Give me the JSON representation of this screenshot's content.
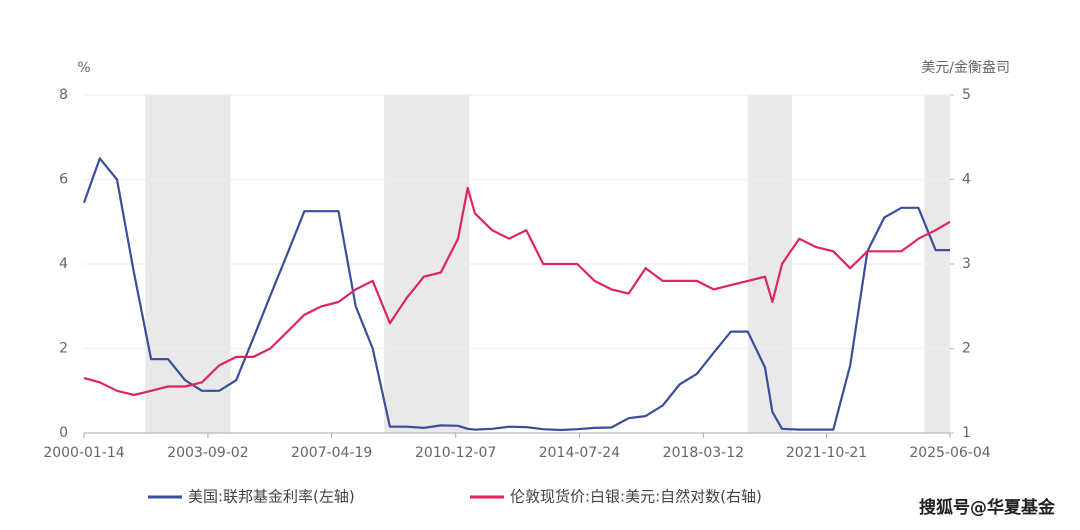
{
  "chart_data": {
    "type": "line",
    "y_unit": "%",
    "y2_unit": "美元/金衡盎司",
    "x": [
      "2000-01-14",
      "2000-07-01",
      "2001-01-01",
      "2001-07-01",
      "2002-01-01",
      "2002-07-01",
      "2003-01-01",
      "2003-07-01",
      "2004-01-01",
      "2004-07-01",
      "2005-01-01",
      "2005-07-01",
      "2006-01-01",
      "2006-07-01",
      "2007-01-01",
      "2007-07-01",
      "2008-01-01",
      "2008-07-01",
      "2009-01-01",
      "2009-07-01",
      "2010-01-01",
      "2010-07-01",
      "2011-01-01",
      "2011-04-15",
      "2011-07-01",
      "2012-01-01",
      "2012-07-01",
      "2013-01-01",
      "2013-07-01",
      "2014-01-01",
      "2014-07-01",
      "2015-01-01",
      "2015-07-01",
      "2016-01-01",
      "2016-07-01",
      "2017-01-01",
      "2017-07-01",
      "2018-01-01",
      "2018-07-01",
      "2019-01-01",
      "2019-07-01",
      "2020-01-01",
      "2020-03-20",
      "2020-07-01",
      "2021-01-01",
      "2021-07-01",
      "2022-01-01",
      "2022-07-01",
      "2023-01-01",
      "2023-07-01",
      "2024-01-01",
      "2024-07-01",
      "2025-01-01",
      "2025-06-04"
    ],
    "series": [
      {
        "name": "美国:联邦基金利率(左轴)",
        "color": "#3a4f9a",
        "axis": "y",
        "values": [
          5.45,
          6.5,
          6.0,
          3.8,
          1.75,
          1.75,
          1.25,
          1.0,
          1.0,
          1.25,
          2.25,
          3.25,
          4.25,
          5.25,
          5.25,
          5.25,
          3.0,
          2.0,
          0.15,
          0.15,
          0.12,
          0.18,
          0.17,
          0.1,
          0.08,
          0.1,
          0.15,
          0.14,
          0.09,
          0.07,
          0.09,
          0.12,
          0.13,
          0.35,
          0.4,
          0.65,
          1.15,
          1.4,
          1.9,
          2.4,
          2.4,
          1.55,
          0.5,
          0.1,
          0.08,
          0.08,
          0.08,
          1.6,
          4.3,
          5.1,
          5.33,
          5.33,
          4.33,
          4.33
        ]
      },
      {
        "name": "伦敦现货价:白银:美元:自然对数(右轴)",
        "color": "#e0245e",
        "axis": "y2",
        "values": [
          1.65,
          1.6,
          1.5,
          1.45,
          1.5,
          1.55,
          1.55,
          1.6,
          1.8,
          1.9,
          1.9,
          2.0,
          2.2,
          2.4,
          2.5,
          2.55,
          2.7,
          2.8,
          2.3,
          2.6,
          2.85,
          2.9,
          3.3,
          3.9,
          3.6,
          3.4,
          3.3,
          3.4,
          3.0,
          3.0,
          3.0,
          2.8,
          2.7,
          2.65,
          2.95,
          2.8,
          2.8,
          2.8,
          2.7,
          2.75,
          2.8,
          2.85,
          2.55,
          3.0,
          3.3,
          3.2,
          3.15,
          2.95,
          3.15,
          3.15,
          3.15,
          3.3,
          3.4,
          3.5
        ]
      }
    ],
    "shaded": [
      [
        "2001-11-01",
        "2004-05-01"
      ],
      [
        "2008-11-01",
        "2011-05-01"
      ],
      [
        "2019-07-01",
        "2020-10-15"
      ],
      [
        "2024-09-01",
        "2025-06-04"
      ]
    ],
    "xlim": [
      "2000-01-14",
      "2025-06-04"
    ],
    "xticks": [
      "2000-01-14",
      "2003-09-02",
      "2007-04-19",
      "2010-12-07",
      "2014-07-24",
      "2018-03-12",
      "2021-10-21",
      "2025-06-04"
    ],
    "ylim": [
      0,
      8
    ],
    "yticks": [
      0,
      2,
      4,
      6,
      8
    ],
    "y2lim": [
      1,
      5
    ],
    "y2ticks": [
      1,
      2,
      3,
      4,
      5
    ],
    "grid": true,
    "watermark": "搜狐号@华夏基金"
  }
}
